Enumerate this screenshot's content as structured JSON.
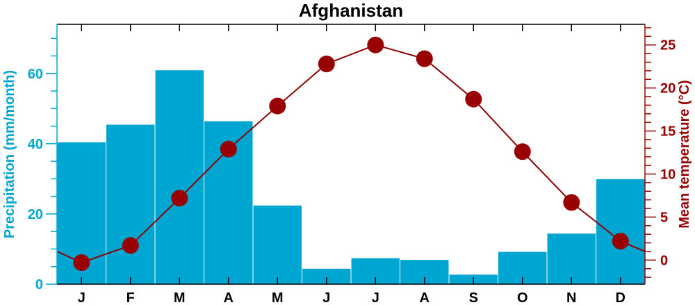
{
  "colors": {
    "precip": "#00a6d2",
    "temp": "#990000",
    "temp_line": "#8b0000",
    "frame": "#000000"
  },
  "chart_data": {
    "type": "bar",
    "title": "Afghanistan",
    "categories": [
      "J",
      "F",
      "M",
      "A",
      "M",
      "J",
      "J",
      "A",
      "S",
      "O",
      "N",
      "D"
    ],
    "series": [
      {
        "type": "bar",
        "axis": "left",
        "values": [
          40.5,
          45.5,
          61,
          46.5,
          22.5,
          4.5,
          7.5,
          7,
          2.8,
          9.3,
          14.5,
          30
        ]
      },
      {
        "type": "line",
        "axis": "right",
        "values": [
          -0.3,
          1.7,
          7.2,
          12.9,
          17.9,
          22.8,
          25.0,
          23.4,
          18.7,
          12.6,
          6.7,
          2.2
        ],
        "edge_values": [
          1.0,
          1.0
        ]
      }
    ],
    "left_axis": {
      "label": "Precipitation (mm/month)",
      "ticks": [
        "0",
        "20",
        "40",
        "60"
      ],
      "range": [
        0,
        74
      ]
    },
    "right_axis": {
      "label": "Mean temperature (°C)",
      "ticks": [
        "0",
        "5",
        "10",
        "15",
        "20",
        "25"
      ],
      "range": [
        -2.8,
        27.4
      ]
    },
    "grid": false,
    "legend": "none"
  }
}
